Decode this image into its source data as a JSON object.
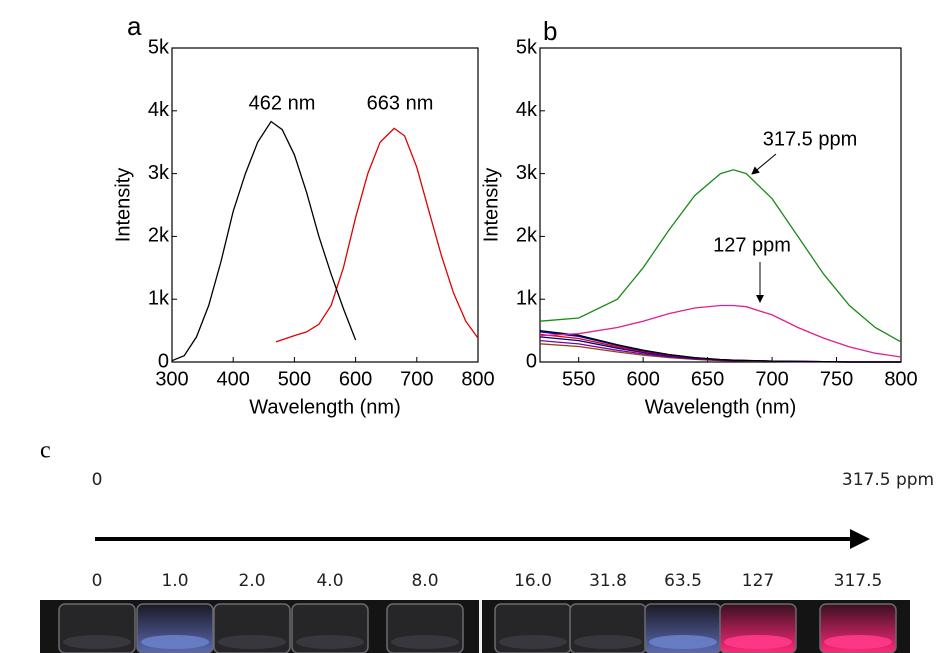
{
  "chart_data": [
    {
      "type": "line",
      "panel_label": "a",
      "xlabel": "Wavelength (nm)",
      "ylabel": "Intensity",
      "xlim": [
        300,
        800
      ],
      "ylim": [
        0,
        5000
      ],
      "xticks": [
        300,
        400,
        500,
        600,
        700,
        800
      ],
      "yticks": [
        0,
        {
          "value": 1000,
          "label": "1k"
        },
        {
          "value": 2000,
          "label": "2k"
        },
        {
          "value": 3000,
          "label": "3k"
        },
        {
          "value": 4000,
          "label": "4k"
        },
        {
          "value": 5000,
          "label": "5k"
        }
      ],
      "annotations": [
        "462 nm",
        "663 nm"
      ],
      "series": [
        {
          "color": "#000000",
          "x": [
            300,
            320,
            340,
            360,
            380,
            400,
            420,
            440,
            462,
            480,
            500,
            520,
            540,
            560,
            580,
            600
          ],
          "values": [
            20,
            100,
            400,
            900,
            1600,
            2400,
            3000,
            3500,
            3830,
            3700,
            3300,
            2700,
            2000,
            1400,
            850,
            350
          ]
        },
        {
          "color": "#e00000",
          "x": [
            470,
            500,
            520,
            540,
            560,
            580,
            600,
            620,
            640,
            663,
            680,
            700,
            720,
            740,
            760,
            780,
            800
          ],
          "values": [
            320,
            420,
            480,
            600,
            900,
            1500,
            2300,
            3000,
            3500,
            3720,
            3600,
            3100,
            2400,
            1700,
            1100,
            650,
            380
          ]
        }
      ]
    },
    {
      "type": "line",
      "panel_label": "b",
      "xlabel": "Wavelength (nm)",
      "ylabel": "Intensity",
      "xlim": [
        520,
        800
      ],
      "ylim": [
        0,
        5000
      ],
      "xticks": [
        550,
        600,
        650,
        700,
        750,
        800
      ],
      "yticks": [
        0,
        {
          "value": 1000,
          "label": "1k"
        },
        {
          "value": 2000,
          "label": "2k"
        },
        {
          "value": 3000,
          "label": "3k"
        },
        {
          "value": 4000,
          "label": "4k"
        },
        {
          "value": 5000,
          "label": "5k"
        }
      ],
      "annotations": [
        "317.5 ppm",
        "127 ppm"
      ],
      "x": [
        520,
        550,
        580,
        600,
        620,
        640,
        660,
        670,
        680,
        700,
        720,
        740,
        760,
        780,
        800
      ],
      "series": [
        {
          "color": "#1a8a1a",
          "values": [
            650,
            700,
            1000,
            1500,
            2100,
            2650,
            3000,
            3060,
            3000,
            2600,
            2000,
            1400,
            900,
            550,
            320
          ]
        },
        {
          "color": "#e0208c",
          "values": [
            420,
            450,
            550,
            650,
            770,
            860,
            900,
            900,
            880,
            750,
            550,
            380,
            240,
            140,
            80
          ]
        },
        {
          "color": "#000000",
          "values": [
            500,
            425,
            275,
            190,
            120,
            70,
            40,
            30,
            25,
            15,
            10,
            5,
            0,
            0,
            0
          ]
        },
        {
          "color": "#0000dd",
          "values": [
            480,
            408,
            264,
            182,
            115,
            67,
            38,
            29,
            24,
            14,
            10,
            5,
            0,
            0,
            0
          ]
        },
        {
          "color": "#dd0000",
          "values": [
            440,
            374,
            242,
            167,
            106,
            62,
            35,
            26,
            22,
            13,
            9,
            4,
            0,
            0,
            0
          ]
        },
        {
          "color": "#000080",
          "values": [
            400,
            340,
            220,
            152,
            96,
            56,
            32,
            24,
            20,
            12,
            8,
            4,
            0,
            0,
            0
          ]
        },
        {
          "color": "#8000a0",
          "values": [
            340,
            289,
            187,
            129,
            82,
            48,
            27,
            20,
            17,
            10,
            7,
            3,
            0,
            0,
            0
          ]
        },
        {
          "color": "#8b4513",
          "values": [
            290,
            247,
            160,
            110,
            70,
            41,
            23,
            17,
            15,
            9,
            6,
            3,
            0,
            0,
            0
          ]
        }
      ]
    }
  ],
  "panel_c": {
    "label": "c",
    "start": "0",
    "end": "317.5 ppm",
    "concentrations": [
      "0",
      "1.0",
      "2.0",
      "4.0",
      "8.0",
      "16.0",
      "31.8",
      "63.5",
      "127",
      "317.5"
    ]
  }
}
